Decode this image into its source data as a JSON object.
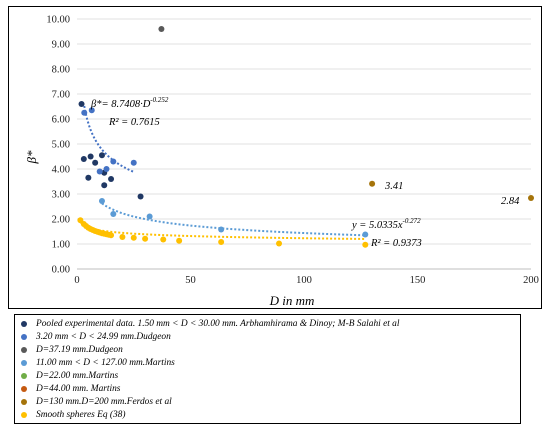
{
  "chart_data": {
    "type": "scatter",
    "xlabel": "D in mm",
    "ylabel": "β*",
    "xlim": [
      0,
      200
    ],
    "ylim": [
      0,
      10
    ],
    "x_ticks": [
      "0",
      "50",
      "100",
      "150",
      "200"
    ],
    "y_ticks": [
      "0.00",
      "1.00",
      "2.00",
      "3.00",
      "4.00",
      "5.00",
      "6.00",
      "7.00",
      "8.00",
      "9.00",
      "10.00"
    ],
    "grid": "horizontal",
    "series": [
      {
        "name": "Pooled experimental data. 1.50 mm < D < 30.00 mm. Arbhamhirama & Dinoy; M-B Salahi et al",
        "color": "#203864",
        "points": [
          [
            2,
            6.6
          ],
          [
            3,
            4.4
          ],
          [
            5,
            3.65
          ],
          [
            6,
            4.5
          ],
          [
            8,
            4.25
          ],
          [
            11,
            4.55
          ],
          [
            12,
            3.85
          ],
          [
            12,
            3.35
          ],
          [
            15,
            3.6
          ],
          [
            28,
            2.9
          ]
        ]
      },
      {
        "name": "3.20 mm < D < 24.99 mm.Dudgeon",
        "color": "#4472c4",
        "points": [
          [
            3.2,
            6.25
          ],
          [
            6.5,
            6.35
          ],
          [
            10,
            3.9
          ],
          [
            13,
            4.0
          ],
          [
            16,
            4.3
          ],
          [
            25,
            4.25
          ]
        ]
      },
      {
        "name": "D=37.19 mm.Dudgeon",
        "color": "#595959",
        "points": [
          [
            37.19,
            9.6
          ]
        ]
      },
      {
        "name": "11.00 mm < D < 127.00 mm.Martins",
        "color": "#5b9bd5",
        "points": [
          [
            11,
            2.72
          ],
          [
            16,
            2.2
          ],
          [
            32,
            2.1
          ],
          [
            63.5,
            1.58
          ],
          [
            127,
            1.38
          ]
        ]
      },
      {
        "name": "D=22.00 mm.Martins",
        "color": "#70ad47",
        "points": []
      },
      {
        "name": "D=44.00 mm. Martins",
        "color": "#c55a11",
        "points": []
      },
      {
        "name": "D=130 mm.D=200 mm.Ferdos et al",
        "color": "#a5740a",
        "points": [
          [
            130,
            3.41
          ],
          [
            200,
            2.84
          ]
        ]
      },
      {
        "name": "Smooth spheres Eq (38)",
        "color": "#ffc000",
        "points": [
          [
            1.5,
            1.95
          ],
          [
            3,
            1.8
          ],
          [
            4,
            1.72
          ],
          [
            5,
            1.65
          ],
          [
            6,
            1.6
          ],
          [
            7,
            1.56
          ],
          [
            8,
            1.52
          ],
          [
            9,
            1.49
          ],
          [
            10,
            1.46
          ],
          [
            11,
            1.43
          ],
          [
            12,
            1.41
          ],
          [
            13,
            1.39
          ],
          [
            14,
            1.37
          ],
          [
            15,
            1.35
          ],
          [
            20,
            1.28
          ],
          [
            25,
            1.25
          ],
          [
            30,
            1.21
          ],
          [
            38,
            1.18
          ],
          [
            45,
            1.13
          ],
          [
            63.5,
            1.08
          ],
          [
            89,
            1.02
          ],
          [
            127,
            0.97
          ]
        ]
      }
    ],
    "trendlines": [
      {
        "series": 1,
        "a": 8.7408,
        "b": -0.252,
        "x_range": [
          3.2,
          25
        ],
        "color": "#4472c4"
      },
      {
        "series": 3,
        "a": 5.0335,
        "b": -0.272,
        "x_range": [
          11,
          127
        ],
        "color": "#5b9bd5"
      },
      {
        "series": 7,
        "a": 1.95,
        "b": -0.1,
        "x_range": [
          1.5,
          127
        ],
        "color": "#ffc000"
      }
    ],
    "annotations": {
      "eq1_main": "β*=  8.7408·D",
      "eq1_exp": "-0.252",
      "eq1_r2": "R² = 0.7615",
      "eq2_main": "y = 5.0335x",
      "eq2_exp": "-0.272",
      "eq2_r2": "R² = 0.9373",
      "label_341": "3.41",
      "label_284": "2.84"
    }
  },
  "legend": {
    "items": [
      {
        "label": "Pooled experimental data. 1.50 mm < D < 30.00 mm. Arbhamhirama & Dinoy; M-B Salahi et al",
        "color": "#203864"
      },
      {
        "label": "3.20 mm < D < 24.99 mm.Dudgeon",
        "color": "#4472c4"
      },
      {
        "label": "D=37.19 mm.Dudgeon",
        "color": "#595959"
      },
      {
        "label": "11.00 mm < D < 127.00 mm.Martins",
        "color": "#5b9bd5"
      },
      {
        "label": "D=22.00 mm.Martins",
        "color": "#70ad47"
      },
      {
        "label": "D=44.00 mm. Martins",
        "color": "#c55a11"
      },
      {
        "label": "D=130 mm.D=200 mm.Ferdos et al",
        "color": "#a5740a"
      },
      {
        "label": "Smooth spheres Eq (38)",
        "color": "#ffc000"
      }
    ]
  }
}
